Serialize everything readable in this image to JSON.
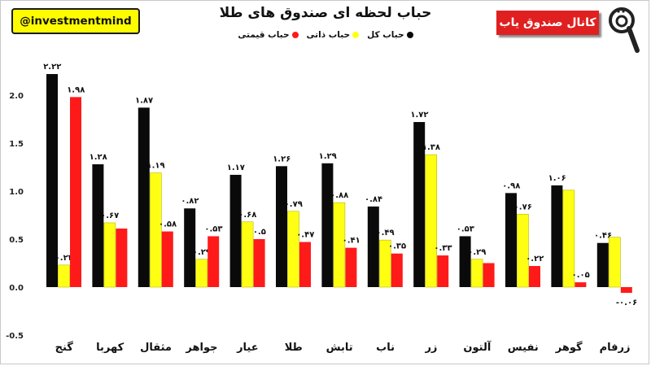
{
  "handle": "@investmentmind",
  "channel_label": "کانال صندوق یاب",
  "logo_icon": "magnifier-logo-icon",
  "colors": {
    "total": "#0a0a0a",
    "intrinsic": "#ffff14",
    "price": "#ff1a1a"
  },
  "chart_data": {
    "type": "bar",
    "title": "حباب لحظه ای صندوق های طلا",
    "categories": [
      "گنج",
      "کهربا",
      "مثقال",
      "جواهر",
      "عیار",
      "طلا",
      "تابش",
      "ناب",
      "زر",
      "آلتون",
      "نفیس",
      "گوهر",
      "زرفام"
    ],
    "series": [
      {
        "name": "حباب کل",
        "values": [
          2.22,
          1.28,
          1.87,
          0.82,
          1.17,
          1.26,
          1.29,
          0.84,
          1.72,
          0.53,
          0.98,
          1.06,
          0.46
        ],
        "labels": [
          "۲.۲۲",
          "۱.۲۸",
          "۱.۸۷",
          "۰.۸۲",
          "۱.۱۷",
          "۱.۲۶",
          "۱.۲۹",
          "۰.۸۴",
          "۱.۷۲",
          "۰.۵۳",
          "۰.۹۸",
          "۱.۰۶",
          "۰.۴۶"
        ]
      },
      {
        "name": "حباب ذاتی",
        "values": [
          0.23,
          0.67,
          1.19,
          0.29,
          0.68,
          0.79,
          0.88,
          0.49,
          1.38,
          0.29,
          0.76,
          1.01,
          0.52
        ],
        "labels": [
          "۰.۲۳",
          "۰.۶۷",
          "۱.۱۹",
          "۰.۲۹",
          "۰.۶۸",
          "۰.۷۹",
          "۰.۸۸",
          "۰.۴۹",
          "۱.۳۸",
          "۰.۲۹",
          "۰.۷۶",
          "",
          ""
        ]
      },
      {
        "name": "حباب قیمتی",
        "values": [
          1.98,
          0.61,
          0.58,
          0.53,
          0.5,
          0.47,
          0.41,
          0.35,
          0.33,
          0.25,
          0.22,
          0.05,
          -0.06
        ],
        "labels": [
          "۱.۹۸",
          "",
          "۰.۵۸",
          "۰.۵۳",
          "۰.۵",
          "۰.۴۷",
          "۰.۴۱",
          "۰.۳۵",
          "۰.۳۳",
          "",
          "۰.۲۲",
          "۰.۰۵",
          "-۰.۰۶"
        ]
      }
    ],
    "ylim": [
      -0.5,
      2.3
    ],
    "yticks": [
      2.0,
      1.5,
      1.0,
      0.5,
      0.0,
      -0.5
    ],
    "ytick_labels": [
      "2.0",
      "1.5",
      "1.0",
      "0.5",
      "0.0",
      "-0.5"
    ],
    "legend_position": "top-center",
    "grid": false
  }
}
